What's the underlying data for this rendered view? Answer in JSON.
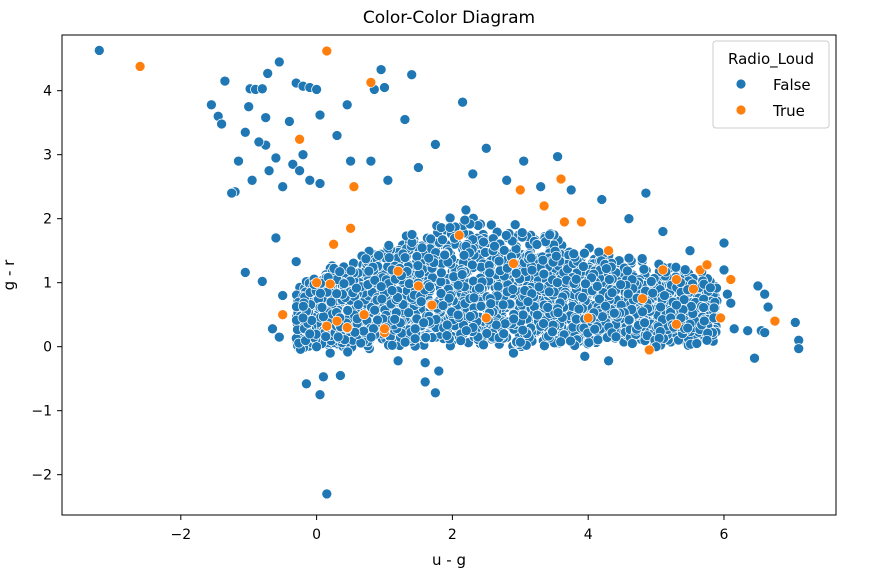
{
  "chart_data": {
    "type": "scatter",
    "title": "Color-Color Diagram",
    "xlabel": "u - g",
    "ylabel": "g - r",
    "xlim": [
      -3.75,
      7.65
    ],
    "ylim": [
      -2.63,
      4.87
    ],
    "xticks": [
      -2,
      0,
      2,
      4,
      6
    ],
    "yticks": [
      -2,
      -1,
      0,
      1,
      2,
      3,
      4
    ],
    "xtick_labels": [
      "−2",
      "0",
      "2",
      "4",
      "6"
    ],
    "ytick_labels": [
      "−2",
      "−1",
      "0",
      "1",
      "2",
      "3",
      "4"
    ],
    "grid": false,
    "legend": {
      "title": "Radio_Loud",
      "placement": "top-right",
      "entries": [
        {
          "label": "False",
          "color": "#1f77b4"
        },
        {
          "label": "True",
          "color": "#ff7f0e"
        }
      ]
    },
    "series": [
      {
        "name": "False",
        "color": "#1f77b4",
        "points": [
          [
            -3.2,
            4.63
          ],
          [
            -1.55,
            3.78
          ],
          [
            -1.45,
            3.6
          ],
          [
            -1.4,
            3.48
          ],
          [
            -1.35,
            4.15
          ],
          [
            -1.2,
            2.42
          ],
          [
            -1.15,
            2.9
          ],
          [
            -1.05,
            3.35
          ],
          [
            -1.0,
            3.75
          ],
          [
            -0.98,
            4.03
          ],
          [
            -0.9,
            4.02
          ],
          [
            -0.8,
            4.03
          ],
          [
            -0.75,
            3.58
          ],
          [
            -0.75,
            3.15
          ],
          [
            -0.72,
            4.27
          ],
          [
            -0.55,
            4.45
          ],
          [
            -0.4,
            3.52
          ],
          [
            -0.3,
            4.12
          ],
          [
            -0.2,
            4.07
          ],
          [
            -0.1,
            4.05
          ],
          [
            0.0,
            4.02
          ],
          [
            0.05,
            3.62
          ],
          [
            -0.85,
            3.2
          ],
          [
            -0.7,
            2.75
          ],
          [
            -0.6,
            2.95
          ],
          [
            -0.5,
            2.5
          ],
          [
            -0.35,
            2.85
          ],
          [
            -0.2,
            3.0
          ],
          [
            -0.1,
            2.6
          ],
          [
            0.05,
            2.55
          ],
          [
            0.3,
            3.3
          ],
          [
            0.45,
            3.78
          ],
          [
            0.95,
            4.33
          ],
          [
            1.4,
            4.25
          ],
          [
            0.85,
            4.02
          ],
          [
            1.0,
            4.05
          ],
          [
            2.15,
            3.82
          ],
          [
            1.3,
            3.55
          ],
          [
            1.75,
            3.16
          ],
          [
            2.5,
            3.1
          ],
          [
            3.05,
            2.9
          ],
          [
            3.55,
            2.97
          ],
          [
            4.85,
            2.4
          ],
          [
            -1.05,
            1.16
          ],
          [
            -0.8,
            1.02
          ],
          [
            -0.6,
            1.7
          ],
          [
            -0.5,
            0.8
          ],
          [
            -0.65,
            0.28
          ],
          [
            -0.55,
            0.15
          ],
          [
            -0.3,
            1.33
          ],
          [
            0.1,
            -0.47
          ],
          [
            -0.15,
            -0.58
          ],
          [
            0.05,
            -0.75
          ],
          [
            0.15,
            -2.3
          ],
          [
            0.35,
            -0.45
          ],
          [
            1.2,
            -0.22
          ],
          [
            1.6,
            -0.25
          ],
          [
            1.6,
            -0.55
          ],
          [
            1.75,
            -0.72
          ],
          [
            1.8,
            -0.38
          ],
          [
            2.9,
            -0.1
          ],
          [
            3.95,
            -0.15
          ],
          [
            4.3,
            -0.22
          ],
          [
            4.65,
            0.05
          ],
          [
            5.0,
            0.0
          ],
          [
            5.3,
            0.65
          ],
          [
            5.6,
            0.05
          ],
          [
            5.75,
            0.1
          ],
          [
            5.85,
            0.45
          ],
          [
            6.0,
            1.62
          ],
          [
            6.05,
            0.82
          ],
          [
            6.1,
            0.68
          ],
          [
            6.15,
            0.28
          ],
          [
            6.35,
            0.25
          ],
          [
            6.5,
            0.95
          ],
          [
            6.55,
            0.25
          ],
          [
            6.6,
            0.22
          ],
          [
            6.6,
            0.82
          ],
          [
            6.65,
            0.62
          ],
          [
            6.45,
            -0.18
          ],
          [
            7.05,
            0.38
          ],
          [
            7.1,
            0.1
          ],
          [
            7.1,
            -0.03
          ],
          [
            6.0,
            1.2
          ],
          [
            5.8,
            0.92
          ],
          [
            -1.25,
            2.4
          ],
          [
            -0.95,
            2.6
          ],
          [
            -0.25,
            2.75
          ],
          [
            0.5,
            2.9
          ],
          [
            0.8,
            2.9
          ],
          [
            1.05,
            2.6
          ],
          [
            1.5,
            2.8
          ],
          [
            2.3,
            2.7
          ],
          [
            2.8,
            2.6
          ],
          [
            3.3,
            2.5
          ],
          [
            3.75,
            2.45
          ],
          [
            4.2,
            2.3
          ],
          [
            4.6,
            2.0
          ],
          [
            5.1,
            1.8
          ],
          [
            5.5,
            1.5
          ],
          [
            -0.2,
            0.45
          ],
          [
            -0.1,
            0.2
          ],
          [
            0.0,
            0.0
          ],
          [
            0.2,
            -0.1
          ]
        ]
      },
      {
        "name": "True",
        "color": "#ff7f0e",
        "points": [
          [
            -2.6,
            4.38
          ],
          [
            0.15,
            4.62
          ],
          [
            0.8,
            4.13
          ],
          [
            -0.25,
            3.24
          ],
          [
            0.55,
            2.5
          ],
          [
            0.25,
            1.6
          ],
          [
            0.5,
            1.85
          ],
          [
            1.2,
            1.18
          ],
          [
            0.2,
            0.98
          ],
          [
            0.15,
            0.32
          ],
          [
            0.0,
            1.0
          ],
          [
            -0.5,
            0.5
          ],
          [
            0.3,
            0.4
          ],
          [
            0.7,
            0.5
          ],
          [
            1.0,
            0.22
          ],
          [
            1.7,
            0.65
          ],
          [
            2.1,
            1.74
          ],
          [
            2.5,
            0.45
          ],
          [
            3.0,
            2.45
          ],
          [
            3.35,
            2.2
          ],
          [
            3.6,
            2.62
          ],
          [
            3.65,
            1.95
          ],
          [
            3.9,
            1.95
          ],
          [
            4.0,
            0.45
          ],
          [
            4.3,
            1.5
          ],
          [
            4.8,
            0.75
          ],
          [
            5.1,
            1.2
          ],
          [
            5.3,
            1.05
          ],
          [
            5.55,
            0.9
          ],
          [
            5.65,
            1.2
          ],
          [
            5.75,
            1.28
          ],
          [
            5.95,
            0.45
          ],
          [
            6.75,
            0.4
          ],
          [
            6.1,
            1.05
          ],
          [
            5.3,
            0.35
          ],
          [
            4.9,
            -0.05
          ],
          [
            2.9,
            1.3
          ],
          [
            1.5,
            0.95
          ],
          [
            1.0,
            0.28
          ],
          [
            0.45,
            0.3
          ]
        ]
      }
    ]
  }
}
